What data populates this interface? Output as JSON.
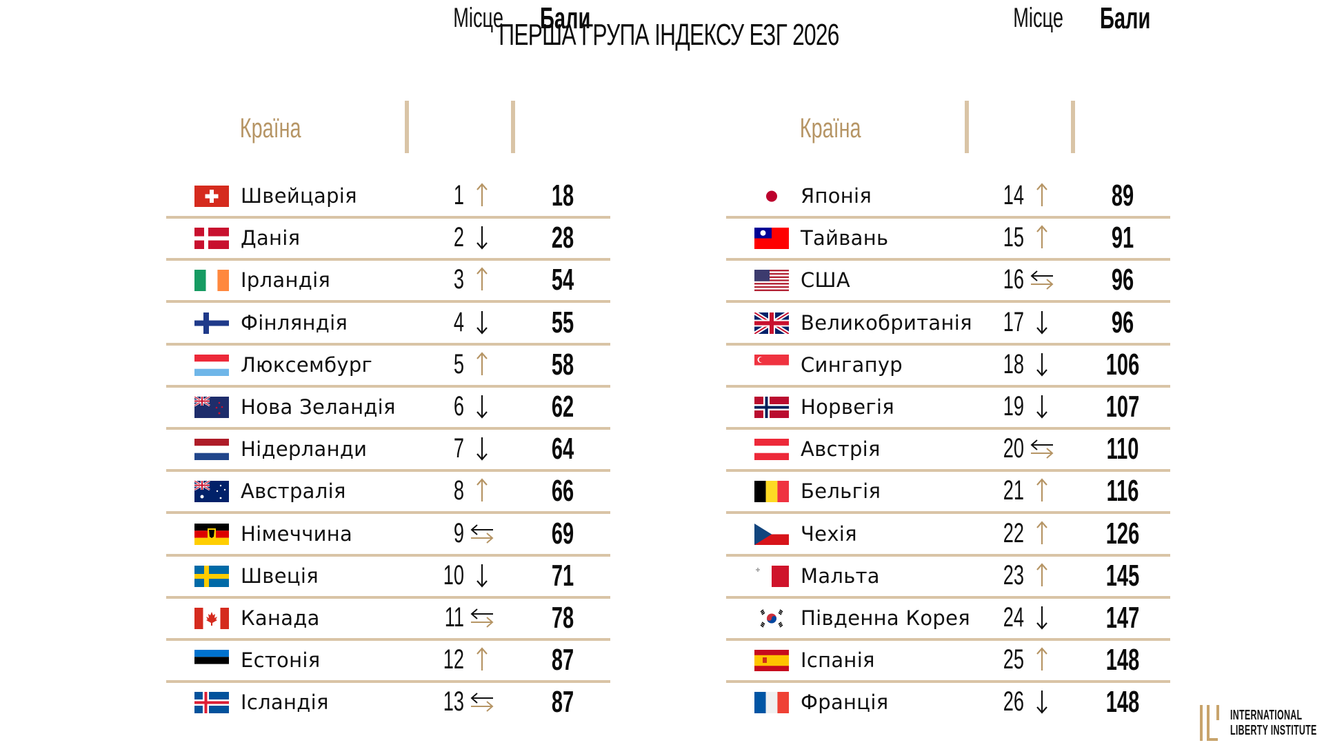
{
  "title": "ПЕРША ГРУПА ІНДЕКСУ ЕЗГ 2026",
  "headers": {
    "country": "Країна",
    "rank": "Місце",
    "score": "Бали"
  },
  "colors": {
    "accent": "#b69565",
    "divider": "#d9c4a6",
    "text": "#111111"
  },
  "legend": {
    "up": "arrow-up-icon",
    "down": "arrow-down-icon",
    "same": "arrows-swap-icon"
  },
  "left_table": {
    "rows": [
      {
        "flag": "switzerland-flag",
        "country": "Швейцарія",
        "rank": "1",
        "trend": "up",
        "score": "18"
      },
      {
        "flag": "denmark-flag",
        "country": "Данія",
        "rank": "2",
        "trend": "down",
        "score": "28"
      },
      {
        "flag": "ireland-flag",
        "country": "Ірландія",
        "rank": "3",
        "trend": "up",
        "score": "54"
      },
      {
        "flag": "finland-flag",
        "country": "Фінляндія",
        "rank": "4",
        "trend": "down",
        "score": "55"
      },
      {
        "flag": "luxembourg-flag",
        "country": "Люксембург",
        "rank": "5",
        "trend": "up",
        "score": "58"
      },
      {
        "flag": "new-zealand-flag",
        "country": "Нова Зеландія",
        "rank": "6",
        "trend": "down",
        "score": "62"
      },
      {
        "flag": "netherlands-flag",
        "country": "Нідерланди",
        "rank": "7",
        "trend": "down",
        "score": "64"
      },
      {
        "flag": "australia-flag",
        "country": "Австралія",
        "rank": "8",
        "trend": "up",
        "score": "66"
      },
      {
        "flag": "germany-flag",
        "country": "Німеччина",
        "rank": "9",
        "trend": "same",
        "score": "69"
      },
      {
        "flag": "sweden-flag",
        "country": "Швеція",
        "rank": "10",
        "trend": "down",
        "score": "71"
      },
      {
        "flag": "canada-flag",
        "country": "Канада",
        "rank": "11",
        "trend": "same",
        "score": "78"
      },
      {
        "flag": "estonia-flag",
        "country": "Естонія",
        "rank": "12",
        "trend": "up",
        "score": "87"
      },
      {
        "flag": "iceland-flag",
        "country": "Ісландія",
        "rank": "13",
        "trend": "same",
        "score": "87"
      }
    ]
  },
  "right_table": {
    "rows": [
      {
        "flag": "japan-flag",
        "country": "Японія",
        "rank": "14",
        "trend": "up",
        "score": "89"
      },
      {
        "flag": "taiwan-flag",
        "country": "Тайвань",
        "rank": "15",
        "trend": "up",
        "score": "91"
      },
      {
        "flag": "usa-flag",
        "country": "США",
        "rank": "16",
        "trend": "same",
        "score": "96"
      },
      {
        "flag": "uk-flag",
        "country": "Великобританія",
        "rank": "17",
        "trend": "down",
        "score": "96"
      },
      {
        "flag": "singapore-flag",
        "country": "Сингапур",
        "rank": "18",
        "trend": "down",
        "score": "106"
      },
      {
        "flag": "norway-flag",
        "country": "Норвегія",
        "rank": "19",
        "trend": "down",
        "score": "107"
      },
      {
        "flag": "austria-flag",
        "country": "Австрія",
        "rank": "20",
        "trend": "same",
        "score": "110"
      },
      {
        "flag": "belgium-flag",
        "country": "Бельгія",
        "rank": "21",
        "trend": "up",
        "score": "116"
      },
      {
        "flag": "czechia-flag",
        "country": "Чехія",
        "rank": "22",
        "trend": "up",
        "score": "126"
      },
      {
        "flag": "malta-flag",
        "country": "Мальта",
        "rank": "23",
        "trend": "up",
        "score": "145"
      },
      {
        "flag": "south-korea-flag",
        "country": "Південна Корея",
        "rank": "24",
        "trend": "down",
        "score": "147"
      },
      {
        "flag": "spain-flag",
        "country": "Іспанія",
        "rank": "25",
        "trend": "up",
        "score": "148"
      },
      {
        "flag": "france-flag",
        "country": "Франція",
        "rank": "26",
        "trend": "down",
        "score": "148"
      }
    ]
  },
  "logo": {
    "line1": "INTERNATIONAL",
    "line2": "LIBERTY INSTITUTE"
  }
}
